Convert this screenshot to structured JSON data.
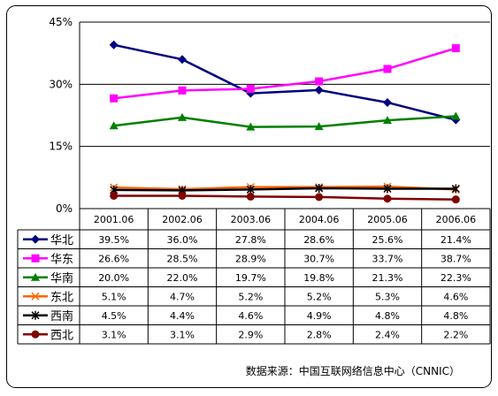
{
  "chart_data": {
    "type": "line",
    "categories": [
      "2001.06",
      "2002.06",
      "2003.06",
      "2004.06",
      "2005.06",
      "2006.06"
    ],
    "ylim": [
      0,
      45
    ],
    "yticks": [
      0,
      15,
      30,
      45
    ],
    "ytick_labels": [
      "0%",
      "15%",
      "30%",
      "45%"
    ],
    "grid": true,
    "legend": "data-table",
    "series": [
      {
        "name": "华北",
        "color": "#000080",
        "marker": "diamond",
        "values": [
          39.5,
          36.0,
          27.8,
          28.6,
          25.6,
          21.4
        ],
        "labels": [
          "39.5%",
          "36.0%",
          "27.8%",
          "28.6%",
          "25.6%",
          "21.4%"
        ]
      },
      {
        "name": "华东",
        "color": "#ff00ff",
        "marker": "square",
        "values": [
          26.6,
          28.5,
          28.9,
          30.7,
          33.7,
          38.7
        ],
        "labels": [
          "26.6%",
          "28.5%",
          "28.9%",
          "30.7%",
          "33.7%",
          "38.7%"
        ]
      },
      {
        "name": "华南",
        "color": "#008000",
        "marker": "triangle",
        "values": [
          20.0,
          22.0,
          19.7,
          19.8,
          21.3,
          22.3
        ],
        "labels": [
          "20.0%",
          "22.0%",
          "19.7%",
          "19.8%",
          "21.3%",
          "22.3%"
        ]
      },
      {
        "name": "东北",
        "color": "#ff6600",
        "marker": "x",
        "values": [
          5.1,
          4.7,
          5.2,
          5.2,
          5.3,
          4.6
        ],
        "labels": [
          "5.1%",
          "4.7%",
          "5.2%",
          "5.2%",
          "5.3%",
          "4.6%"
        ]
      },
      {
        "name": "西南",
        "color": "#000000",
        "marker": "star",
        "values": [
          4.5,
          4.4,
          4.6,
          4.9,
          4.8,
          4.8
        ],
        "labels": [
          "4.5%",
          "4.4%",
          "4.6%",
          "4.9%",
          "4.8%",
          "4.8%"
        ]
      },
      {
        "name": "西北",
        "color": "#800000",
        "marker": "circle",
        "values": [
          3.1,
          3.1,
          2.9,
          2.8,
          2.4,
          2.2
        ],
        "labels": [
          "3.1%",
          "3.1%",
          "2.9%",
          "2.8%",
          "2.4%",
          "2.2%"
        ]
      }
    ],
    "source": "数据来源：中国互联网络信息中心（CNNIC）"
  }
}
